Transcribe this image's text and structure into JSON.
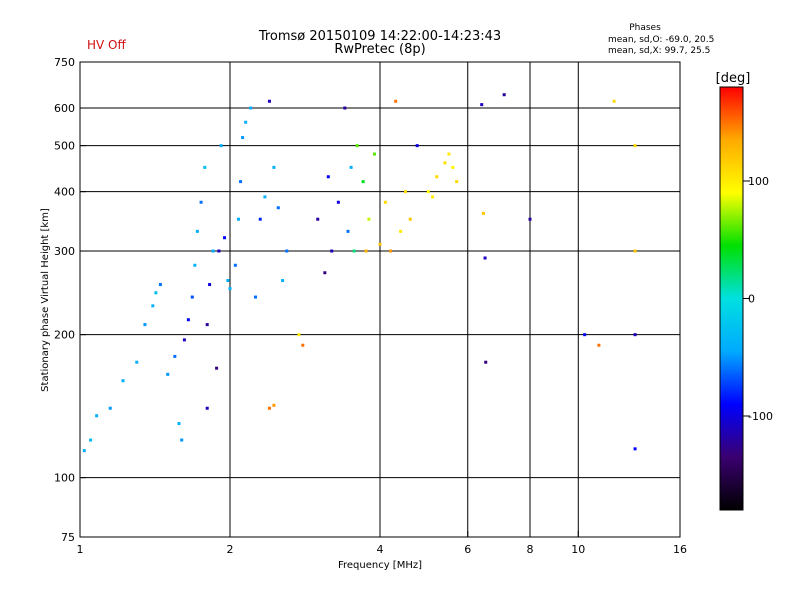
{
  "header": {
    "title_line1": "Tromsø 20150109 14:22:00-14:23:43",
    "title_line2": "RwPretec (8p)",
    "hv_status": "HV Off",
    "hv_color": "#d01010",
    "stats_title": "Phases",
    "stats_line1": "mean, sd,O: -69.0, 20.5",
    "stats_line2": "mean, sd,X:  99.7, 25.5"
  },
  "colorbar": {
    "unit_label": "[deg]",
    "range": [
      -180,
      180
    ],
    "ticks": [
      {
        "value": 100,
        "label": "100"
      },
      {
        "value": 0,
        "label": "0"
      },
      {
        "value": -100,
        "label": "-100"
      }
    ],
    "colors": [
      "#000000",
      "#3a0070",
      "#0000ff",
      "#00aaff",
      "#00e0e0",
      "#00e000",
      "#ffff00",
      "#ffaa00",
      "#ff0000"
    ]
  },
  "chart_data": {
    "type": "scatter",
    "title": "Tromsø 20150109 14:22:00-14:23:43",
    "subtitle": "RwPretec (8p)",
    "xlabel": "Frequency [MHz]",
    "ylabel": "Stationary phase Virtual Height [km]",
    "x_scale": "log",
    "y_scale": "log",
    "xlim": [
      1,
      16
    ],
    "ylim": [
      75,
      750
    ],
    "grid": true,
    "x_ticks": [
      {
        "value": 1,
        "label": "1"
      },
      {
        "value": 2,
        "label": "2"
      },
      {
        "value": 4,
        "label": "4"
      },
      {
        "value": 6,
        "label": "6"
      },
      {
        "value": 8,
        "label": "8"
      },
      {
        "value": 10,
        "label": "10"
      },
      {
        "value": 16,
        "label": "16"
      }
    ],
    "y_ticks": [
      {
        "value": 75,
        "label": "75"
      },
      {
        "value": 100,
        "label": "100"
      },
      {
        "value": 200,
        "label": "200"
      },
      {
        "value": 300,
        "label": "300"
      },
      {
        "value": 400,
        "label": "400"
      },
      {
        "value": 500,
        "label": "500"
      },
      {
        "value": 600,
        "label": "600"
      },
      {
        "value": 750,
        "label": "750"
      }
    ],
    "points": [
      [
        1.02,
        114,
        -40
      ],
      [
        1.05,
        120,
        -30
      ],
      [
        1.08,
        135,
        -40
      ],
      [
        1.15,
        140,
        -50
      ],
      [
        1.22,
        160,
        -40
      ],
      [
        1.3,
        175,
        -40
      ],
      [
        1.35,
        210,
        -50
      ],
      [
        1.4,
        230,
        -40
      ],
      [
        1.42,
        245,
        -30
      ],
      [
        1.45,
        255,
        -60
      ],
      [
        1.5,
        165,
        -50
      ],
      [
        1.55,
        180,
        -60
      ],
      [
        1.58,
        130,
        -40
      ],
      [
        1.6,
        120,
        -50
      ],
      [
        1.62,
        195,
        -110
      ],
      [
        1.65,
        215,
        -90
      ],
      [
        1.68,
        240,
        -70
      ],
      [
        1.7,
        280,
        -40
      ],
      [
        1.72,
        330,
        -40
      ],
      [
        1.75,
        380,
        -60
      ],
      [
        1.78,
        450,
        -30
      ],
      [
        1.8,
        140,
        -110
      ],
      [
        1.8,
        210,
        -120
      ],
      [
        1.82,
        255,
        -100
      ],
      [
        1.85,
        300,
        -40
      ],
      [
        1.88,
        170,
        -130
      ],
      [
        1.9,
        300,
        -110
      ],
      [
        1.92,
        500,
        -40
      ],
      [
        1.95,
        320,
        -90
      ],
      [
        1.98,
        260,
        -40
      ],
      [
        2.0,
        250,
        -40
      ],
      [
        2.05,
        280,
        -60
      ],
      [
        2.08,
        350,
        -40
      ],
      [
        2.1,
        420,
        -60
      ],
      [
        2.12,
        520,
        -50
      ],
      [
        2.15,
        560,
        -40
      ],
      [
        2.2,
        600,
        -40
      ],
      [
        2.25,
        240,
        -60
      ],
      [
        2.3,
        350,
        -80
      ],
      [
        2.35,
        390,
        -40
      ],
      [
        2.4,
        620,
        -110
      ],
      [
        2.45,
        450,
        -40
      ],
      [
        2.5,
        370,
        -60
      ],
      [
        2.55,
        260,
        -40
      ],
      [
        2.6,
        300,
        -60
      ],
      [
        2.4,
        140,
        150
      ],
      [
        2.45,
        142,
        140
      ],
      [
        2.75,
        200,
        100
      ],
      [
        2.8,
        190,
        150
      ],
      [
        3.0,
        350,
        -120
      ],
      [
        3.1,
        270,
        -130
      ],
      [
        3.15,
        430,
        -90
      ],
      [
        3.2,
        300,
        -110
      ],
      [
        3.3,
        380,
        -100
      ],
      [
        3.4,
        600,
        -120
      ],
      [
        3.45,
        330,
        -60
      ],
      [
        3.5,
        450,
        -40
      ],
      [
        3.55,
        300,
        20
      ],
      [
        3.6,
        500,
        60
      ],
      [
        3.7,
        420,
        40
      ],
      [
        3.75,
        300,
        130
      ],
      [
        3.8,
        350,
        80
      ],
      [
        3.9,
        480,
        60
      ],
      [
        4.0,
        310,
        120
      ],
      [
        4.1,
        380,
        110
      ],
      [
        4.2,
        300,
        140
      ],
      [
        4.3,
        620,
        150
      ],
      [
        4.4,
        330,
        100
      ],
      [
        4.5,
        400,
        110
      ],
      [
        4.6,
        350,
        120
      ],
      [
        4.75,
        500,
        -100
      ],
      [
        5.0,
        400,
        90
      ],
      [
        5.1,
        390,
        100
      ],
      [
        5.2,
        430,
        110
      ],
      [
        5.4,
        460,
        105
      ],
      [
        5.5,
        480,
        100
      ],
      [
        5.6,
        450,
        95
      ],
      [
        5.7,
        420,
        110
      ],
      [
        6.4,
        610,
        -110
      ],
      [
        6.45,
        360,
        120
      ],
      [
        6.5,
        290,
        -110
      ],
      [
        6.52,
        175,
        -130
      ],
      [
        7.1,
        640,
        -120
      ],
      [
        8.0,
        350,
        -120
      ],
      [
        10.3,
        200,
        -90
      ],
      [
        11.0,
        190,
        150
      ],
      [
        11.8,
        620,
        110
      ],
      [
        13.0,
        300,
        120
      ],
      [
        13.0,
        500,
        110
      ],
      [
        13.0,
        200,
        -110
      ],
      [
        13.0,
        115,
        -90
      ]
    ]
  }
}
